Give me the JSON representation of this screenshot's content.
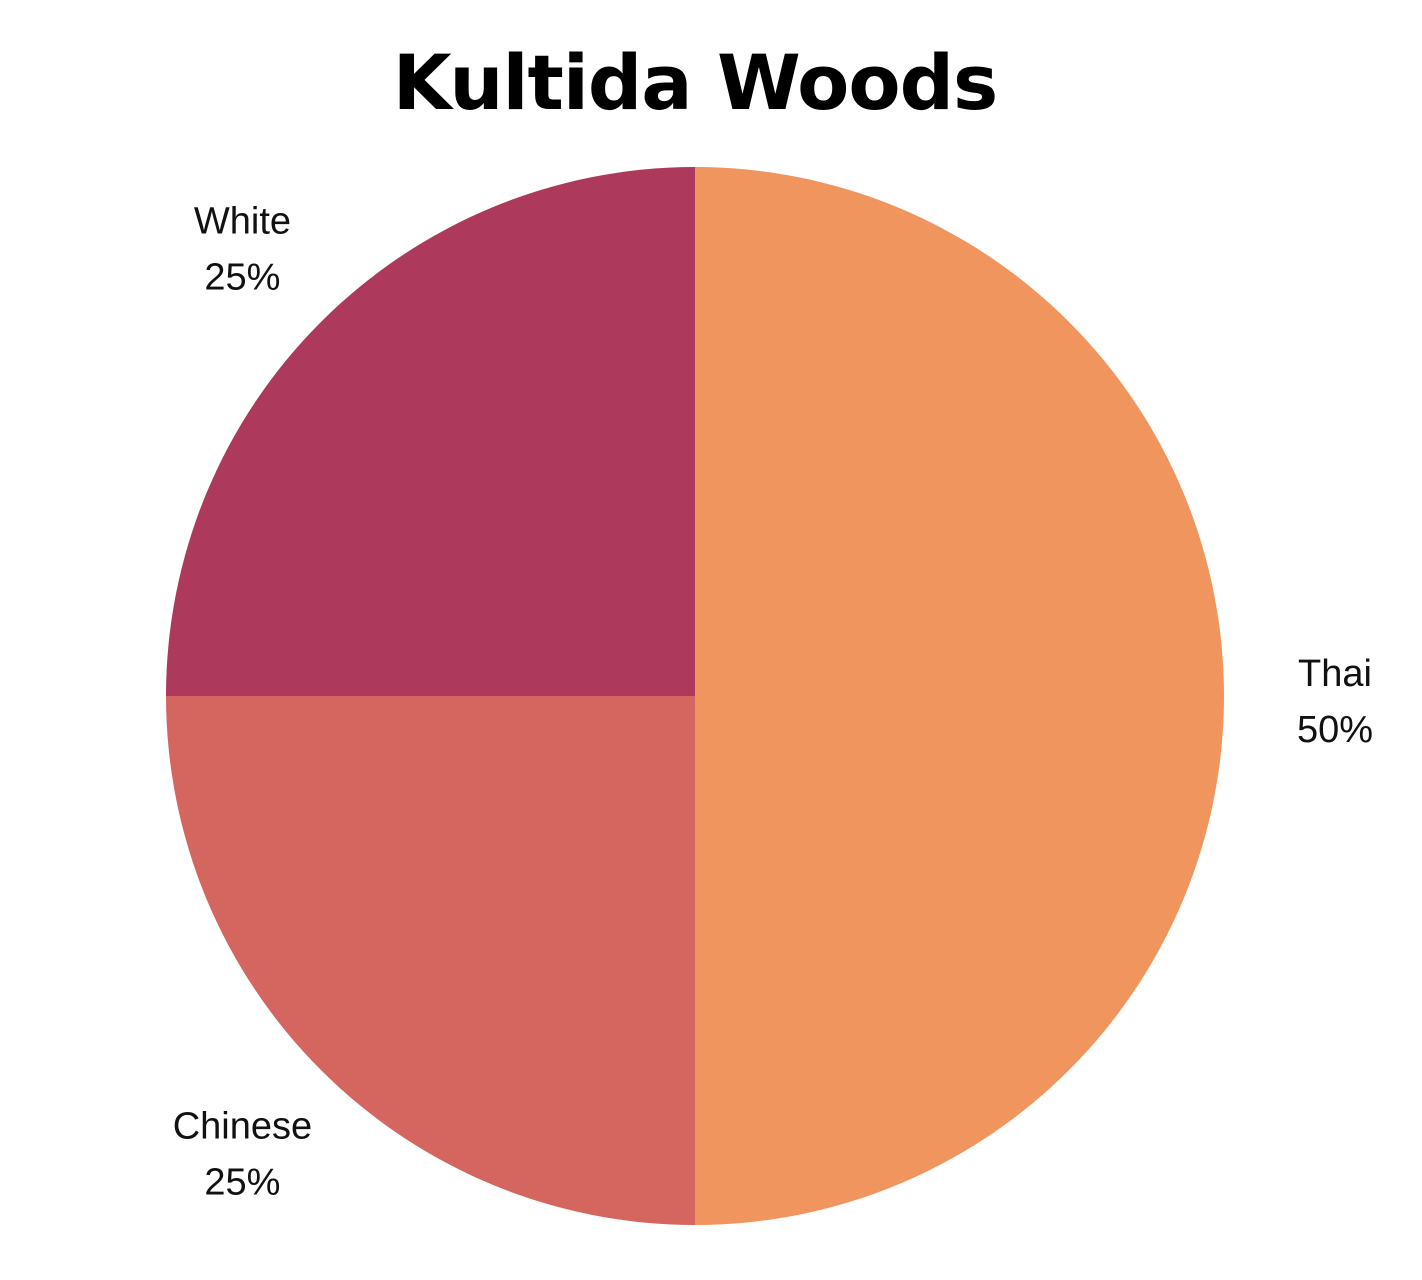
{
  "chart_data": {
    "type": "pie",
    "title": "Kultida Woods",
    "slices": [
      {
        "label": "Thai",
        "value": 50,
        "display": "50%",
        "color": "#F0955D"
      },
      {
        "label": "Chinese",
        "value": 25,
        "display": "25%",
        "color": "#D4655F"
      },
      {
        "label": "White",
        "value": 25,
        "display": "25%",
        "color": "#AD3A5C"
      }
    ],
    "legend": "none",
    "label_position": "outside"
  }
}
